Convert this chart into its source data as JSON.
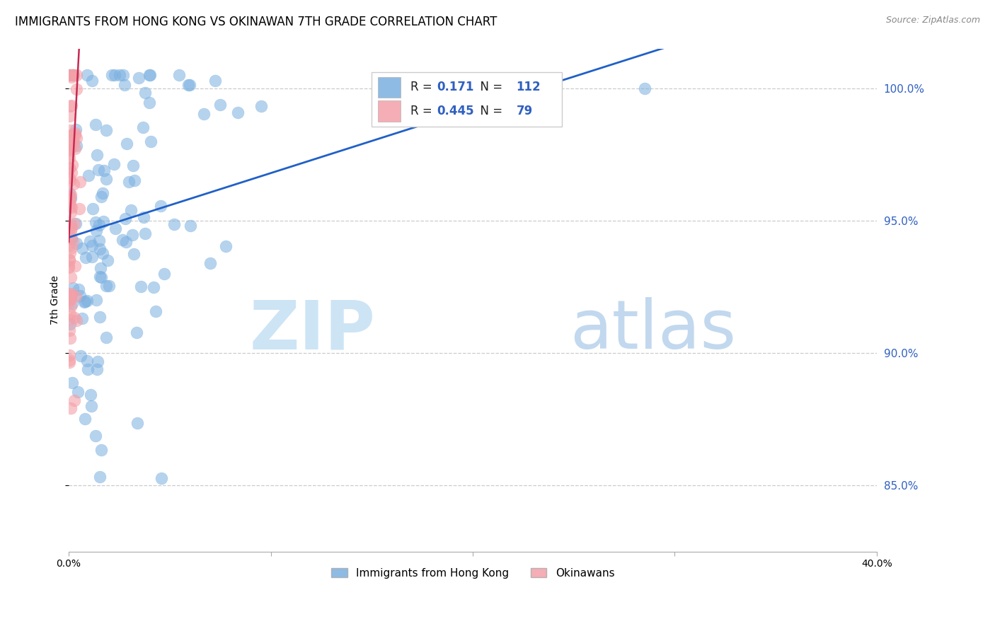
{
  "title": "IMMIGRANTS FROM HONG KONG VS OKINAWAN 7TH GRADE CORRELATION CHART",
  "source": "Source: ZipAtlas.com",
  "ylabel": "7th Grade",
  "xlim": [
    0.0,
    40.0
  ],
  "ylim": [
    82.5,
    101.5
  ],
  "y_ticks": [
    85.0,
    90.0,
    95.0,
    100.0
  ],
  "blue_R": 0.171,
  "blue_N": 112,
  "pink_R": 0.445,
  "pink_N": 79,
  "blue_color": "#7ab0e0",
  "pink_color": "#f4a0a8",
  "trend_blue": "#2060c8",
  "trend_pink": "#c82850",
  "watermark_zip": "ZIP",
  "watermark_atlas": "atlas",
  "legend_label_blue": "Immigrants from Hong Kong",
  "legend_label_pink": "Okinawans",
  "title_fontsize": 12,
  "source_fontsize": 9,
  "axis_label_fontsize": 10,
  "legend_value_color": "#3060c0",
  "legend_text_color": "#202020"
}
